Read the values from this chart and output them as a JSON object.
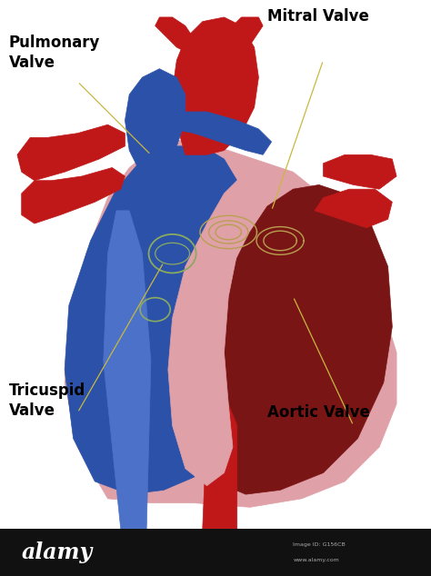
{
  "bg_color": "#ffffff",
  "heart_pink": "#DFA0A8",
  "heart_dark_red": "#7A1515",
  "heart_red": "#C01818",
  "heart_blue_dark": "#1A3A8A",
  "heart_blue": "#2B52A8",
  "heart_blue_light": "#4B72C8",
  "valve_gold": "#B8A050",
  "valve_green": "#8AAA60",
  "bottom_bar_color": "#111111",
  "label_pulmonary": "Pulmonary\nValve",
  "label_mitral": "Mitral Valve",
  "label_tricuspid": "Tricuspid\nValve",
  "label_aortic": "Aortic Valve",
  "label_fontsize": 12,
  "label_fontweight": "bold",
  "ann_color": "#C8B840",
  "line_color": "#A0A0A0"
}
